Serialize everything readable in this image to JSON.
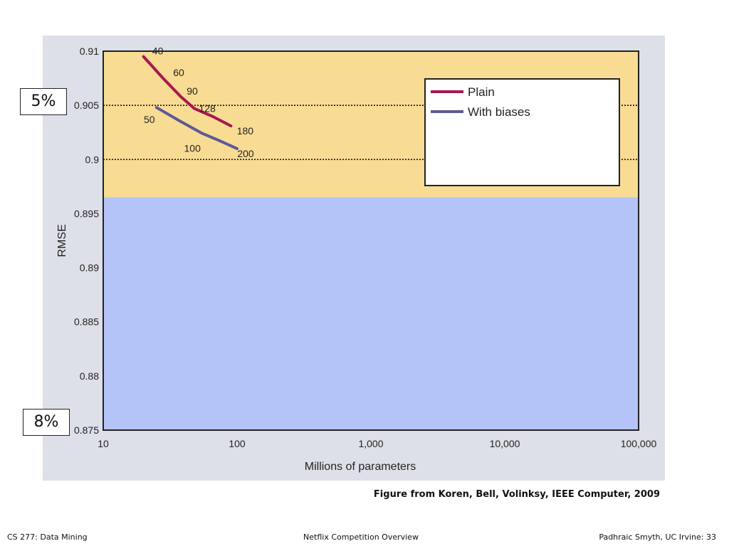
{
  "chart_data": {
    "type": "line",
    "ylabel": "RMSE",
    "xlabel": "Millions of parameters",
    "x_scale": "log",
    "xlim": [
      10,
      100000
    ],
    "ylim": [
      0.875,
      0.91
    ],
    "x_ticks": [
      10,
      100,
      1000,
      10000,
      100000
    ],
    "x_tick_labels": [
      "10",
      "100",
      "1,000",
      "10,000",
      "100,000"
    ],
    "y_ticks": [
      0.875,
      0.88,
      0.885,
      0.89,
      0.895,
      0.9,
      0.905,
      0.91
    ],
    "y_tick_labels": [
      "0.875",
      "0.88",
      "0.885",
      "0.89",
      "0.895",
      "0.9",
      "0.905",
      "0.91"
    ],
    "reference_lines_y": [
      0.905,
      0.9
    ],
    "bands": [
      {
        "ymin": 0.8965,
        "ymax": 0.91,
        "color": "#f8dc94"
      },
      {
        "ymin": 0.875,
        "ymax": 0.8965,
        "color": "#b4c4f8"
      }
    ],
    "legend_position": "top-right",
    "series": [
      {
        "name": "Plain",
        "color": "#a8174f",
        "points": [
          {
            "x": 20,
            "y": 0.9095
          },
          {
            "x": 28,
            "y": 0.9075
          },
          {
            "x": 38,
            "y": 0.9058
          },
          {
            "x": 48,
            "y": 0.9047
          },
          {
            "x": 65,
            "y": 0.904
          },
          {
            "x": 90,
            "y": 0.9031
          }
        ],
        "labels": [
          {
            "text": "40",
            "x": 20,
            "y": 0.9095
          },
          {
            "text": "60",
            "x": 28,
            "y": 0.9075
          },
          {
            "text": "90",
            "x": 38,
            "y": 0.9058
          },
          {
            "text": "128",
            "x": 48,
            "y": 0.9047
          },
          {
            "text": "180",
            "x": 90,
            "y": 0.9031
          }
        ]
      },
      {
        "name": "With biases",
        "color": "#5a5a96",
        "points": [
          {
            "x": 25,
            "y": 0.9048
          },
          {
            "x": 38,
            "y": 0.9035
          },
          {
            "x": 55,
            "y": 0.9024
          },
          {
            "x": 75,
            "y": 0.9017
          },
          {
            "x": 100,
            "y": 0.901
          }
        ],
        "labels": [
          {
            "text": "50",
            "x": 25,
            "y": 0.9048
          },
          {
            "text": "100",
            "x": 55,
            "y": 0.9024
          },
          {
            "text": "200",
            "x": 100,
            "y": 0.901
          }
        ]
      }
    ]
  },
  "callouts": {
    "five_percent": "5%",
    "eight_percent": "8%"
  },
  "caption": "Figure from Koren, Bell, Volinksy, IEEE Computer, 2009",
  "footer": {
    "left": "CS 277: Data Mining",
    "center": "Netflix Competition Overview",
    "right": "Padhraic Smyth, UC Irvine: 33"
  }
}
